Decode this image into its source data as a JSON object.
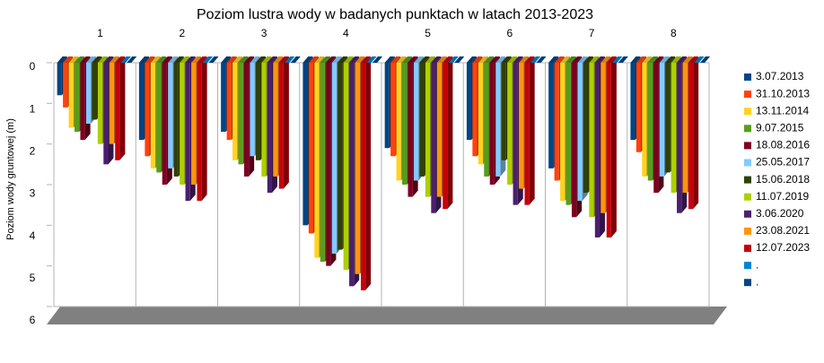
{
  "chart_data": {
    "type": "bar3d",
    "title": "Poziom lustra wody w badanych punktach w latach 2013-2023",
    "y_label": "Poziom wody gruntowej (m)",
    "ylim": [
      0,
      6
    ],
    "yticks": [
      0,
      1,
      2,
      3,
      4,
      5,
      6
    ],
    "y_inverted": true,
    "legend": "right",
    "categories": [
      "1",
      "2",
      "3",
      "4",
      "5",
      "6",
      "7",
      "8"
    ],
    "series": [
      {
        "name": "3.07.2013",
        "color": "#004586",
        "values": [
          0.8,
          1.9,
          1.7,
          4.0,
          2.1,
          1.9,
          2.6,
          1.9
        ]
      },
      {
        "name": "31.10.2013",
        "color": "#ff420e",
        "values": [
          1.1,
          2.3,
          1.9,
          4.2,
          2.3,
          2.3,
          2.9,
          2.2
        ]
      },
      {
        "name": "13.11.2014",
        "color": "#ffd320",
        "values": [
          1.6,
          2.6,
          2.4,
          4.8,
          2.9,
          2.5,
          3.4,
          2.8
        ]
      },
      {
        "name": "9.07.2015",
        "color": "#579d1c",
        "values": [
          1.7,
          2.7,
          2.5,
          4.9,
          3.0,
          2.8,
          3.5,
          2.9
        ]
      },
      {
        "name": "18.08.2016",
        "color": "#7e0021",
        "values": [
          1.9,
          3.0,
          2.8,
          5.0,
          3.3,
          3.0,
          3.8,
          3.2
        ]
      },
      {
        "name": "25.05.2017",
        "color": "#83caff",
        "values": [
          1.5,
          2.6,
          2.3,
          4.7,
          2.9,
          2.8,
          3.4,
          2.8
        ]
      },
      {
        "name": "15.06.2018",
        "color": "#314004",
        "values": [
          1.4,
          2.8,
          2.4,
          4.6,
          2.8,
          2.4,
          3.2,
          2.7
        ]
      },
      {
        "name": "11.07.2019",
        "color": "#aecf00",
        "values": [
          2.0,
          3.0,
          2.8,
          5.1,
          3.3,
          3.0,
          3.8,
          3.2
        ]
      },
      {
        "name": "3.06.2020",
        "color": "#4b1f6f",
        "values": [
          2.5,
          3.4,
          3.2,
          5.5,
          3.7,
          3.5,
          4.3,
          3.7
        ]
      },
      {
        "name": "23.08.2021",
        "color": "#ff950e",
        "values": [
          2.0,
          3.0,
          2.8,
          5.2,
          3.3,
          3.1,
          3.7,
          3.2
        ]
      },
      {
        "name": "12.07.2023",
        "color": "#c5000b",
        "values": [
          2.4,
          3.4,
          3.1,
          5.6,
          3.6,
          3.5,
          4.3,
          3.6
        ]
      },
      {
        "name": ".",
        "color": "#0084d1",
        "values": [
          0,
          0,
          0,
          0,
          0,
          0,
          0,
          0
        ]
      },
      {
        "name": ".",
        "color": "#004586",
        "values": [
          0,
          0,
          0,
          0,
          0,
          0,
          0,
          0
        ]
      }
    ]
  }
}
